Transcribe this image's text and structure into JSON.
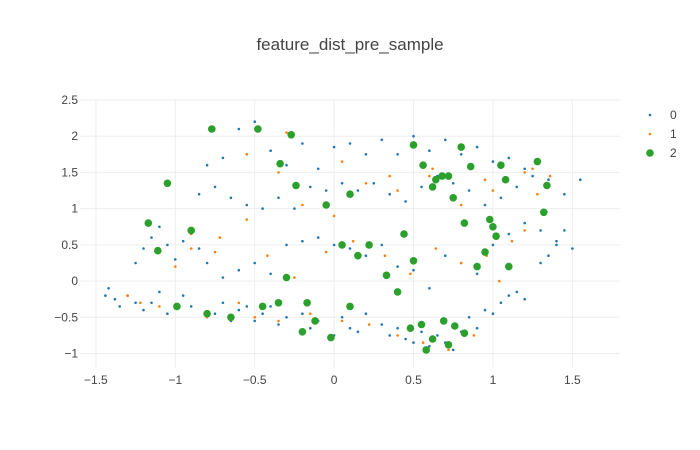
{
  "chart_data": {
    "type": "scatter",
    "title": "feature_dist_pre_sample",
    "xlabel": "",
    "ylabel": "",
    "xlim": [
      -1.6,
      1.8
    ],
    "ylim": [
      -1.2,
      2.5
    ],
    "xticks": [
      -1.5,
      -1,
      -0.5,
      0,
      0.5,
      1,
      1.5
    ],
    "xtick_labels": [
      "−1.5",
      "−1",
      "−0.5",
      "0",
      "0.5",
      "1",
      "1.5"
    ],
    "yticks": [
      -1,
      -0.5,
      0,
      0.5,
      1,
      1.5,
      2,
      2.5
    ],
    "ytick_labels": [
      "−1",
      "−0.5",
      "0",
      "0.5",
      "1",
      "1.5",
      "2",
      "2.5"
    ],
    "grid": true,
    "legend_position": "top-right",
    "series": [
      {
        "name": "0",
        "color": "#1f77b4",
        "marker_size": "small",
        "note_clusters": "dense small-point clusters spread across the parallelogram region",
        "x": [
          -1.44,
          -1.42,
          -1.38,
          -1.35,
          -1.3,
          -1.25,
          -1.2,
          -1.15,
          -1.1,
          -1.05,
          -0.95,
          -0.9,
          -0.75,
          -0.7,
          -0.65,
          -0.6,
          -0.55,
          -0.5,
          -0.45,
          -0.4,
          -0.35,
          -0.3,
          -0.2,
          -0.15,
          -0.1,
          0.0,
          0.05,
          0.1,
          0.15,
          0.2,
          0.3,
          0.35,
          0.4,
          0.45,
          0.5,
          0.55,
          0.6,
          0.65,
          0.7,
          0.75,
          0.8,
          0.85,
          0.9,
          0.95,
          1.0,
          1.05,
          1.1,
          1.15,
          1.2,
          1.3,
          1.35,
          1.4,
          1.45,
          -1.25,
          -1.2,
          -1.15,
          -1.1,
          -1.05,
          -1.0,
          -0.95,
          -0.9,
          -0.85,
          -0.8,
          -0.7,
          -0.6,
          -0.5,
          -0.4,
          -0.3,
          -0.2,
          -0.1,
          0.0,
          0.1,
          0.2,
          0.3,
          0.4,
          0.5,
          0.6,
          0.7,
          0.8,
          0.9,
          1.0,
          1.1,
          1.2,
          1.3,
          1.4,
          1.5,
          -0.85,
          -0.75,
          -0.65,
          -0.55,
          -0.45,
          -0.35,
          -0.25,
          -0.15,
          -0.05,
          0.05,
          0.15,
          0.25,
          0.35,
          0.45,
          0.55,
          0.65,
          0.75,
          0.85,
          0.95,
          1.05,
          1.15,
          1.25,
          1.35,
          1.45,
          1.55,
          -0.8,
          -0.7,
          -0.6,
          -0.5,
          -0.4,
          -0.3,
          -0.2,
          -0.1,
          0.0,
          0.1,
          0.2,
          0.3,
          0.4,
          0.5,
          0.6,
          0.7,
          0.8,
          0.9,
          1.0,
          1.1,
          1.2
        ],
        "y": [
          -0.2,
          -0.1,
          -0.25,
          -0.35,
          -0.2,
          -0.3,
          -0.4,
          -0.3,
          -0.15,
          -0.45,
          -0.2,
          -0.35,
          -0.45,
          -0.3,
          -0.55,
          -0.4,
          -0.35,
          -0.55,
          -0.45,
          -0.35,
          -0.6,
          -0.5,
          -0.45,
          -0.65,
          -0.55,
          -0.75,
          -0.5,
          -0.65,
          -0.7,
          -0.45,
          -0.6,
          -0.75,
          -0.65,
          -0.8,
          -0.85,
          -0.7,
          -0.9,
          -0.75,
          -0.85,
          -0.95,
          -0.7,
          -0.5,
          -0.65,
          -0.4,
          -0.45,
          -0.3,
          -0.2,
          -0.15,
          -0.25,
          0.25,
          0.35,
          0.5,
          0.7,
          0.25,
          0.45,
          0.6,
          0.75,
          0.5,
          0.3,
          0.55,
          0.7,
          0.45,
          0.25,
          0.05,
          0.15,
          0.25,
          0.1,
          0.5,
          0.55,
          0.6,
          0.5,
          0.45,
          0.35,
          0.5,
          0.2,
          0.15,
          -0.1,
          0.35,
          0.25,
          0.1,
          0.5,
          0.65,
          0.8,
          0.7,
          0.55,
          0.45,
          1.2,
          1.3,
          1.15,
          1.05,
          1.0,
          1.15,
          1.0,
          1.3,
          1.25,
          1.35,
          1.25,
          1.35,
          1.2,
          1.1,
          1.3,
          1.45,
          1.35,
          1.25,
          1.05,
          1.15,
          1.3,
          1.45,
          1.4,
          1.2,
          1.4,
          1.6,
          1.7,
          2.1,
          2.2,
          1.8,
          1.6,
          1.9,
          1.55,
          1.85,
          1.9,
          1.75,
          1.95,
          1.75,
          2.0,
          1.8,
          1.95,
          1.75,
          1.85,
          1.65,
          1.7,
          1.55
        ]
      },
      {
        "name": "1",
        "color": "#ff7f0e",
        "marker_size": "small",
        "x": [
          -1.3,
          -1.22,
          -1.1,
          -1.0,
          -0.9,
          -0.8,
          -0.72,
          -0.6,
          -0.5,
          -0.42,
          -0.35,
          -0.25,
          -0.15,
          -0.05,
          0.05,
          0.12,
          0.22,
          0.32,
          0.4,
          0.48,
          0.56,
          0.64,
          0.72,
          0.8,
          0.88,
          0.96,
          1.04,
          1.12,
          1.2,
          1.28,
          1.36,
          -0.9,
          -0.75,
          -0.55,
          -0.35,
          -0.2,
          0.0,
          0.2,
          0.4,
          0.6,
          0.8,
          1.0,
          1.2,
          -0.55,
          -0.3,
          0.05,
          0.35,
          0.62,
          0.95,
          1.25
        ],
        "y": [
          -0.2,
          -0.3,
          -0.35,
          0.2,
          0.45,
          -0.5,
          0.6,
          -0.3,
          -0.5,
          0.35,
          -0.55,
          0.05,
          -0.45,
          0.4,
          -0.55,
          0.55,
          -0.6,
          0.35,
          -0.75,
          0.1,
          -0.85,
          0.45,
          -0.95,
          0.25,
          -0.75,
          0.35,
          0.0,
          0.55,
          0.7,
          1.2,
          1.45,
          0.65,
          0.4,
          0.85,
          1.5,
          1.05,
          0.9,
          1.35,
          1.25,
          1.45,
          1.05,
          1.25,
          1.5,
          1.75,
          2.05,
          1.65,
          1.45,
          1.55,
          1.4,
          1.55
        ]
      },
      {
        "name": "2",
        "color": "#2ca02c",
        "marker_size": "large",
        "x": [
          -0.77,
          -0.48,
          -0.27,
          -0.34,
          -0.24,
          -0.05,
          0.1,
          0.1,
          -0.02,
          0.05,
          -0.3,
          -0.17,
          -0.12,
          0.15,
          0.22,
          0.33,
          0.4,
          0.44,
          0.5,
          0.5,
          0.56,
          0.62,
          0.64,
          0.68,
          0.72,
          0.75,
          0.8,
          0.82,
          0.86,
          0.9,
          0.95,
          0.98,
          1.0,
          1.02,
          1.05,
          1.1,
          1.28,
          1.32,
          1.34,
          1.08,
          -1.17,
          -1.11,
          -0.99,
          -0.9,
          -1.05,
          -0.8,
          -0.65,
          -0.45,
          -0.35,
          -0.2,
          0.55,
          0.62,
          0.72,
          0.76,
          0.82,
          0.48,
          0.58,
          0.69
        ],
        "y": [
          2.1,
          2.1,
          2.02,
          1.62,
          1.32,
          1.05,
          1.2,
          -0.35,
          -0.78,
          0.5,
          0.05,
          -0.3,
          -0.55,
          0.35,
          0.5,
          0.08,
          -0.15,
          0.65,
          0.28,
          1.88,
          1.6,
          1.3,
          1.4,
          1.45,
          1.45,
          1.15,
          1.85,
          0.8,
          1.58,
          0.2,
          0.4,
          0.85,
          0.75,
          0.62,
          1.6,
          0.2,
          1.65,
          0.95,
          1.32,
          1.4,
          0.8,
          0.42,
          -0.35,
          0.7,
          1.35,
          -0.45,
          -0.5,
          -0.35,
          -0.3,
          -0.7,
          -0.6,
          -0.8,
          -0.88,
          -0.62,
          -0.72,
          -0.65,
          -0.95,
          -0.55
        ]
      }
    ]
  }
}
